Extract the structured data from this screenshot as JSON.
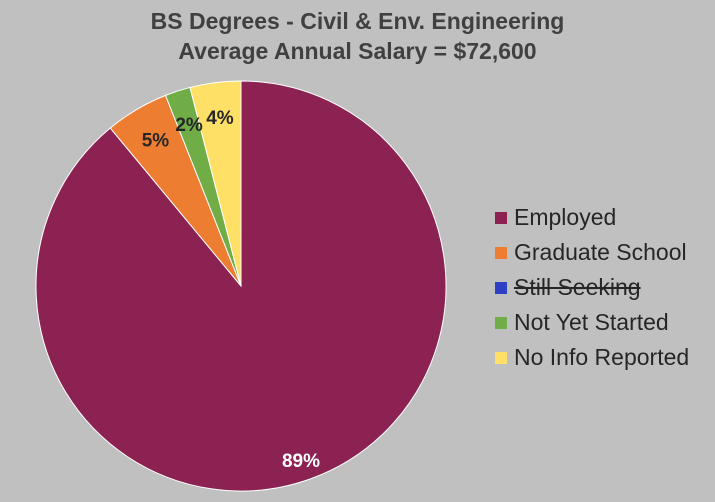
{
  "chart_data": {
    "type": "pie",
    "title": [
      "BS Degrees - Civil & Env. Engineering",
      "Average Annual Salary = $72,600"
    ],
    "categories": [
      "Employed",
      "Graduate School",
      "Still Seeking",
      "Not Yet Started",
      "No Info Reported"
    ],
    "values": [
      89,
      5,
      0,
      2,
      4
    ],
    "data_labels": [
      "89%",
      "5%",
      "",
      "2%",
      "4%"
    ],
    "colors": [
      "#8b2252",
      "#ed7d31",
      "#2e3fc4",
      "#70ad47",
      "#ffe066"
    ],
    "legend_placement": "right",
    "legend_struck": [
      false,
      false,
      true,
      false,
      false
    ],
    "start_angle_deg": 0,
    "direction": "clockwise-from-top, series drawn counterclockwise"
  }
}
